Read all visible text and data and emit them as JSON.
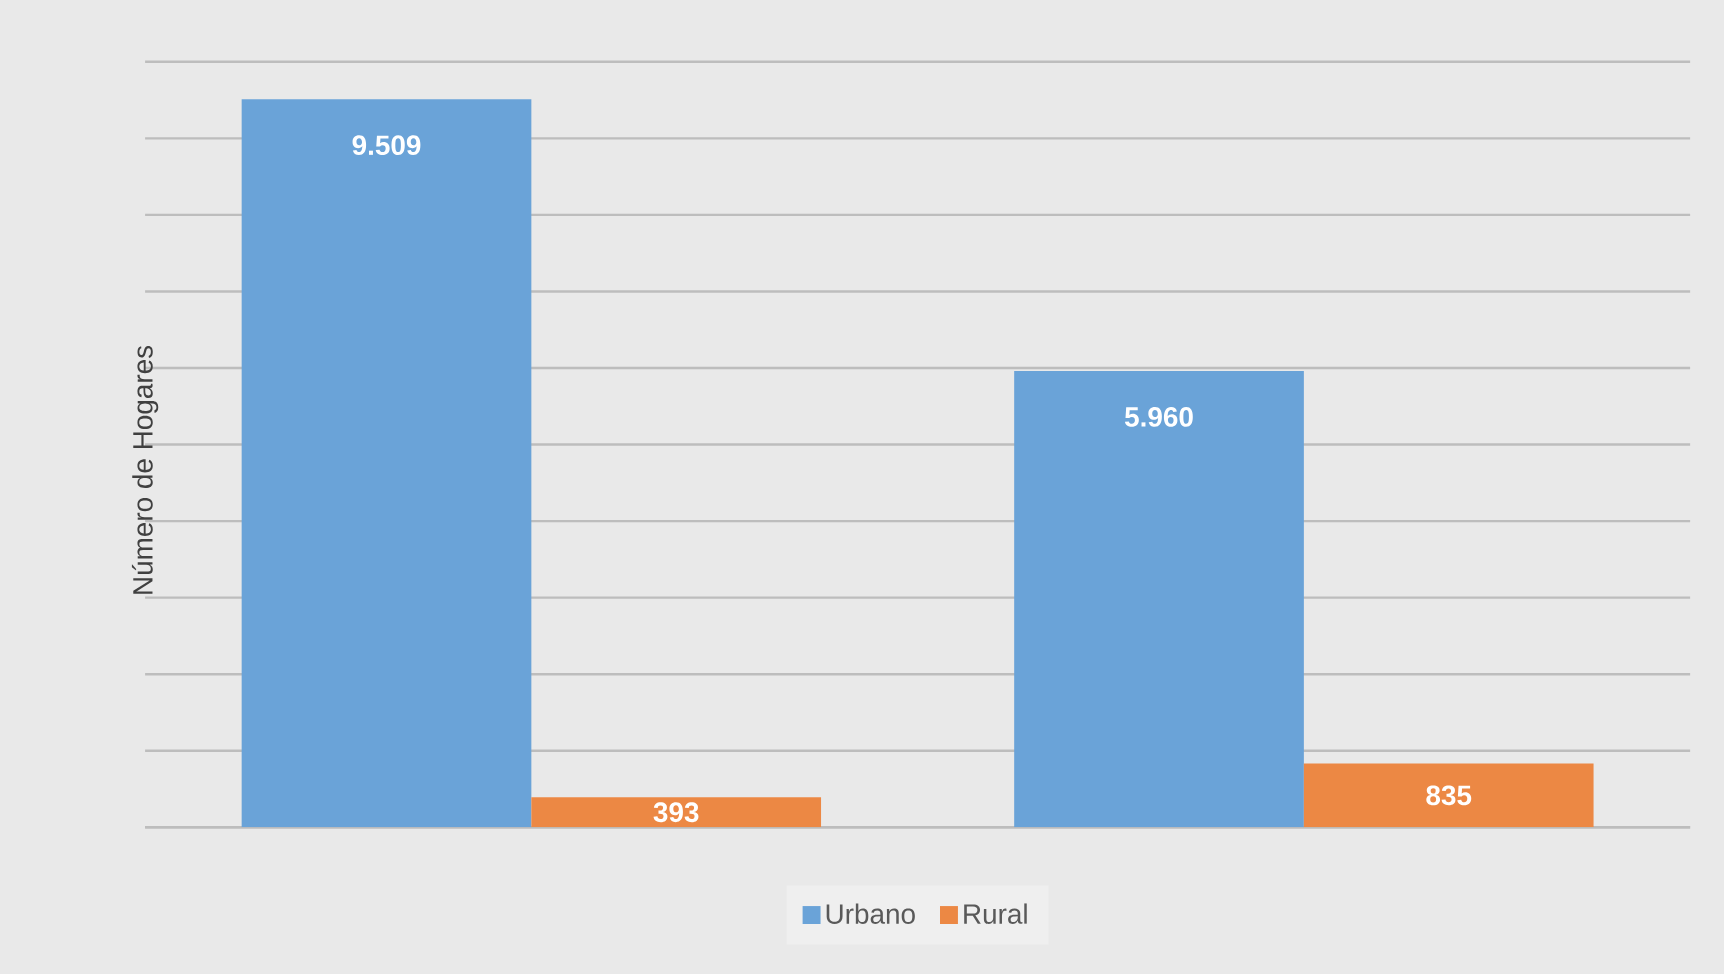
{
  "chart_data": {
    "type": "bar",
    "ylabel": "Número de Hogares",
    "categories": [
      null,
      null
    ],
    "series": [
      {
        "name": "Urbano",
        "color": "#6aa3d8",
        "values": [
          9509,
          5960
        ],
        "value_labels": [
          "9.509",
          "5.960"
        ]
      },
      {
        "name": "Rural",
        "color": "#ec8844",
        "values": [
          393,
          835
        ],
        "value_labels": [
          "393",
          "835"
        ]
      }
    ],
    "ylim": [
      0,
      10000
    ],
    "yticks": [
      {
        "value": 0,
        "label": null
      },
      {
        "value": 1000,
        "label": null
      },
      {
        "value": 2000,
        "label": null
      },
      {
        "value": 3000,
        "label": null
      },
      {
        "value": 4000,
        "label": null
      },
      {
        "value": 5000,
        "label": null
      },
      {
        "value": 6000,
        "label": null
      },
      {
        "value": 7000,
        "label": null
      },
      {
        "value": 8000,
        "label": null
      },
      {
        "value": 9000,
        "label": null
      },
      {
        "value": 10000,
        "label": null
      }
    ],
    "grid": "y",
    "legend": "bottom",
    "tick_labels": false
  }
}
